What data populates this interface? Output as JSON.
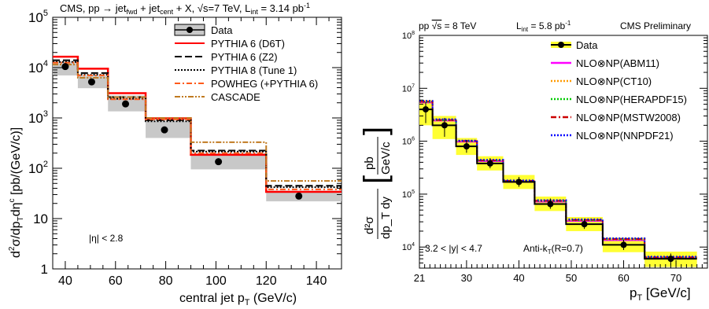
{
  "chart_data": [
    {
      "type": "line",
      "title": "CMS, pp → jet_fwd + jet_cent + X, √s=7 TeV, L_int = 3.14 pb⁻¹",
      "title_parts": [
        "CMS, pp → jet",
        "fwd",
        " + jet",
        "cent",
        " + X, √s=7 TeV, L",
        "int",
        " = 3.14 pb",
        "-1"
      ],
      "xlabel": "central jet p_T (GeV/c)",
      "xlabel_parts": [
        "central jet p",
        "T",
        " (GeV/c)"
      ],
      "ylabel": "d²σ/dp_T dη^c [pb/(GeV/c)]",
      "ylabel_parts": [
        "d",
        "2",
        "σ/dp",
        "T",
        "dη",
        "c",
        " [pb/(GeV/c)]"
      ],
      "xlim": [
        35,
        150
      ],
      "ylim": [
        1,
        100000
      ],
      "yscale": "log",
      "xticks": [
        "40",
        "60",
        "80",
        "100",
        "120",
        "140"
      ],
      "yticks": [
        "1",
        "10",
        "10^2",
        "10^3",
        "10^4",
        "10^5"
      ],
      "annotation": "|η| < 2.8",
      "legend_position": "top-right",
      "bin_edges": [
        35,
        45,
        57,
        72,
        90,
        120,
        150
      ],
      "data": {
        "name": "Data",
        "x": [
          40,
          50.5,
          64,
          79.5,
          101,
          133
        ],
        "y": [
          10500,
          5200,
          1900,
          580,
          135,
          28
        ],
        "band_low": [
          7000,
          3900,
          1350,
          400,
          95,
          22
        ],
        "band_high": [
          13500,
          6800,
          2800,
          850,
          200,
          36
        ]
      },
      "series": [
        {
          "name": "PYTHIA 6 (D6T)",
          "color": "#ff0000",
          "style": "solid",
          "values": [
            16500,
            9500,
            3100,
            980,
            185,
            34
          ]
        },
        {
          "name": "PYTHIA 6 (Z2)",
          "color": "#000000",
          "style": "longdash",
          "values": [
            14000,
            7800,
            2600,
            900,
            225,
            45
          ]
        },
        {
          "name": "PYTHIA 8 (Tune 1)",
          "color": "#000000",
          "style": "dotted",
          "values": [
            13000,
            7200,
            2400,
            860,
            215,
            42
          ]
        },
        {
          "name": "POWHEG (+PYTHIA 6)",
          "color": "#ff5a1a",
          "style": "dashdot",
          "values": [
            12500,
            7000,
            2350,
            940,
            200,
            38
          ]
        },
        {
          "name": "CASCADE",
          "color": "#c07a20",
          "style": "dashdotdot",
          "values": [
            11500,
            6300,
            2600,
            1000,
            330,
            56
          ]
        }
      ]
    },
    {
      "type": "line",
      "title_left": "pp √s = 8 TeV",
      "title_left_parts": [
        "pp ",
        "√s",
        " = 8 TeV"
      ],
      "title_mid": "L_int = 5.8 pb⁻¹",
      "title_mid_parts": [
        "L",
        "int",
        " = 5.8 pb",
        "-1"
      ],
      "title_right": "CMS Preliminary",
      "xlabel": "p_T [GeV/c]",
      "xlabel_parts": [
        "p",
        "T",
        " [GeV/c]"
      ],
      "ylabel": "d²σ/dp_T dy [pb/GeV/c]",
      "ylabel_num": "d²σ",
      "ylabel_den": "dp_T dy",
      "ylabel_bracket_num": "pb",
      "ylabel_bracket_den": "GeV/c",
      "xlim": [
        21,
        76
      ],
      "ylim": [
        4000,
        100000000
      ],
      "yscale": "log",
      "xticks": [
        "21",
        "30",
        "40",
        "50",
        "60",
        "70"
      ],
      "yticks": [
        "10^4",
        "10^5",
        "10^6",
        "10^7",
        "10^8"
      ],
      "annotation_left": "3.2 < |y| < 4.7",
      "annotation_right": "Anti-k_T (R=0.7)",
      "annotation_right_parts": [
        "Anti-k",
        "T",
        "(R=0.7)"
      ],
      "legend_position": "top-right",
      "bin_edges": [
        21,
        23.5,
        28,
        32,
        37,
        43,
        49,
        56,
        64,
        74
      ],
      "data": {
        "name": "Data",
        "x": [
          22.2,
          25.8,
          30,
          34.5,
          40,
          46,
          52.5,
          60,
          69
        ],
        "y": [
          4000000,
          2000000,
          800000,
          380000,
          170000,
          65000,
          27000,
          11000,
          6000
        ],
        "band_low": [
          2000000,
          1100000,
          550000,
          280000,
          125000,
          48000,
          20000,
          8000,
          4200
        ],
        "band_high": [
          6000000,
          3000000,
          1150000,
          520000,
          230000,
          90000,
          37000,
          15000,
          8200
        ]
      },
      "series": [
        {
          "name": "NLO⊗NP(ABM11)",
          "color": "#ff00ff",
          "style": "solid",
          "values": [
            5400000,
            2450000,
            980000,
            420000,
            170000,
            72000,
            31000,
            13500,
            6200
          ]
        },
        {
          "name": "NLO⊗NP(CT10)",
          "color": "#ff9900",
          "style": "dotted",
          "values": [
            5700000,
            2550000,
            1020000,
            440000,
            180000,
            76000,
            33000,
            14500,
            6500
          ]
        },
        {
          "name": "NLO⊗NP(HERAPDF15)",
          "color": "#00cc00",
          "style": "dotted",
          "values": [
            5500000,
            2500000,
            1000000,
            430000,
            175000,
            74000,
            32000,
            14000,
            6300
          ]
        },
        {
          "name": "NLO⊗NP(MSTW2008)",
          "color": "#cc0000",
          "style": "dashdot",
          "values": [
            5600000,
            2520000,
            1010000,
            435000,
            178000,
            75000,
            32500,
            14200,
            6400
          ]
        },
        {
          "name": "NLO⊗NP(NNPDF21)",
          "color": "#0000ff",
          "style": "dotted",
          "values": [
            5800000,
            2600000,
            1030000,
            445000,
            182000,
            77000,
            33500,
            14700,
            6600
          ]
        }
      ]
    }
  ]
}
